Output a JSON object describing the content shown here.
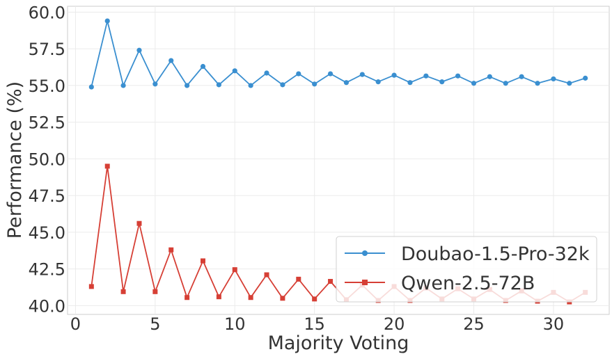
{
  "chart_data": {
    "type": "line",
    "title": "",
    "xlabel": "Majority Voting",
    "ylabel": "Performance (%)",
    "xlim": [
      -0.5,
      33.5
    ],
    "ylim": [
      39.4,
      60.4
    ],
    "x_ticks": [
      0,
      5,
      10,
      15,
      20,
      25,
      30
    ],
    "y_ticks": [
      40.0,
      42.5,
      45.0,
      47.5,
      50.0,
      52.5,
      55.0,
      57.5,
      60.0
    ],
    "y_tick_labels": [
      "40.0",
      "42.5",
      "45.0",
      "47.5",
      "50.0",
      "52.5",
      "55.0",
      "57.5",
      "60.0"
    ],
    "grid": true,
    "legend_position": "lower-right",
    "x": [
      1,
      2,
      3,
      4,
      5,
      6,
      7,
      8,
      9,
      10,
      11,
      12,
      13,
      14,
      15,
      16,
      17,
      18,
      19,
      20,
      21,
      22,
      23,
      24,
      25,
      26,
      27,
      28,
      29,
      30,
      31,
      32
    ],
    "series": [
      {
        "name": "Doubao-1.5-Pro-32k",
        "color": "#3a8fd0",
        "marker": "circle",
        "values": [
          54.9,
          59.4,
          55.0,
          57.4,
          55.1,
          56.7,
          55.0,
          56.3,
          55.05,
          56.0,
          55.0,
          55.85,
          55.05,
          55.8,
          55.1,
          55.8,
          55.2,
          55.75,
          55.25,
          55.7,
          55.2,
          55.65,
          55.25,
          55.65,
          55.15,
          55.6,
          55.15,
          55.6,
          55.15,
          55.45,
          55.15,
          55.5
        ]
      },
      {
        "name": "Qwen-2.5-72B",
        "color": "#d63f35",
        "marker": "square",
        "values": [
          41.3,
          49.5,
          40.95,
          45.6,
          40.95,
          43.8,
          40.55,
          43.05,
          40.6,
          42.45,
          40.55,
          42.1,
          40.5,
          41.8,
          40.45,
          41.65,
          40.4,
          41.4,
          40.35,
          41.3,
          40.35,
          41.2,
          40.45,
          41.15,
          40.45,
          41.1,
          40.35,
          41.0,
          40.3,
          40.9,
          40.25,
          40.9
        ]
      }
    ]
  }
}
